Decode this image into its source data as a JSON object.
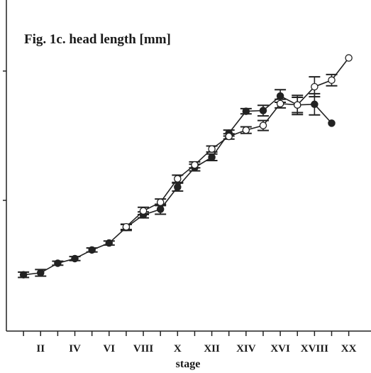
{
  "chart_data": {
    "type": "line",
    "title": "Fig. 1c. head length [mm]",
    "xlabel": "stage",
    "ylabel": "",
    "x_tick_labels": [
      "II",
      "IV",
      "VI",
      "VIII",
      "X",
      "XII",
      "XIV",
      "XVI",
      "XVIII",
      "XX"
    ],
    "x_tick_positions": [
      2,
      4,
      6,
      8,
      10,
      12,
      14,
      16,
      18,
      20
    ],
    "xlim": [
      0,
      21.3
    ],
    "ylim": [
      0,
      100
    ],
    "grid": false,
    "series": [
      {
        "marker": "filled-circle",
        "color": "#222222",
        "points": [
          {
            "x": 1,
            "y": 17.0,
            "err": 0.8
          },
          {
            "x": 2,
            "y": 17.6,
            "err": 1.0
          },
          {
            "x": 3,
            "y": 20.5,
            "err": 0.6
          },
          {
            "x": 4,
            "y": 21.9,
            "err": 0.6
          },
          {
            "x": 5,
            "y": 24.5,
            "err": 0.6
          },
          {
            "x": 6,
            "y": 26.6,
            "err": 0.6
          },
          {
            "x": 7,
            "y": 31.3,
            "err": 0.9
          },
          {
            "x": 8,
            "y": 35.1,
            "err": 0.9
          },
          {
            "x": 9,
            "y": 36.8,
            "err": 1.5
          },
          {
            "x": 10,
            "y": 43.5,
            "err": 1.2
          },
          {
            "x": 11,
            "y": 49.4,
            "err": 1.0
          },
          {
            "x": 12,
            "y": 52.5,
            "err": 1.0
          },
          {
            "x": 13,
            "y": 59.8,
            "err": 0.9
          },
          {
            "x": 14,
            "y": 66.4,
            "err": 0.8
          },
          {
            "x": 15,
            "y": 66.6,
            "err": 1.6
          },
          {
            "x": 16,
            "y": 71.0,
            "err": 1.9
          },
          {
            "x": 17,
            "y": 68.3,
            "err": 2.9
          },
          {
            "x": 18,
            "y": 68.5,
            "err": 3.2
          },
          {
            "x": 19,
            "y": 62.8,
            "err": 0
          }
        ]
      },
      {
        "marker": "open-circle",
        "color": "#222222",
        "points": [
          {
            "x": 7,
            "y": 31.5,
            "err": 0.8
          },
          {
            "x": 8,
            "y": 36.3,
            "err": 1.1
          },
          {
            "x": 9,
            "y": 38.9,
            "err": 1.0
          },
          {
            "x": 10,
            "y": 46.0,
            "err": 1.1
          },
          {
            "x": 11,
            "y": 50.2,
            "err": 0.9
          },
          {
            "x": 12,
            "y": 55.0,
            "err": 0.9
          },
          {
            "x": 13,
            "y": 58.8,
            "err": 0.8
          },
          {
            "x": 14,
            "y": 60.7,
            "err": 1.0
          },
          {
            "x": 15,
            "y": 62.1,
            "err": 1.5
          },
          {
            "x": 16,
            "y": 68.7,
            "err": 1.3
          },
          {
            "x": 17,
            "y": 68.3,
            "err": 2.3
          },
          {
            "x": 18,
            "y": 73.8,
            "err": 3.0
          },
          {
            "x": 19,
            "y": 75.8,
            "err": 1.7
          },
          {
            "x": 20,
            "y": 82.5,
            "err": 0
          }
        ]
      }
    ]
  }
}
